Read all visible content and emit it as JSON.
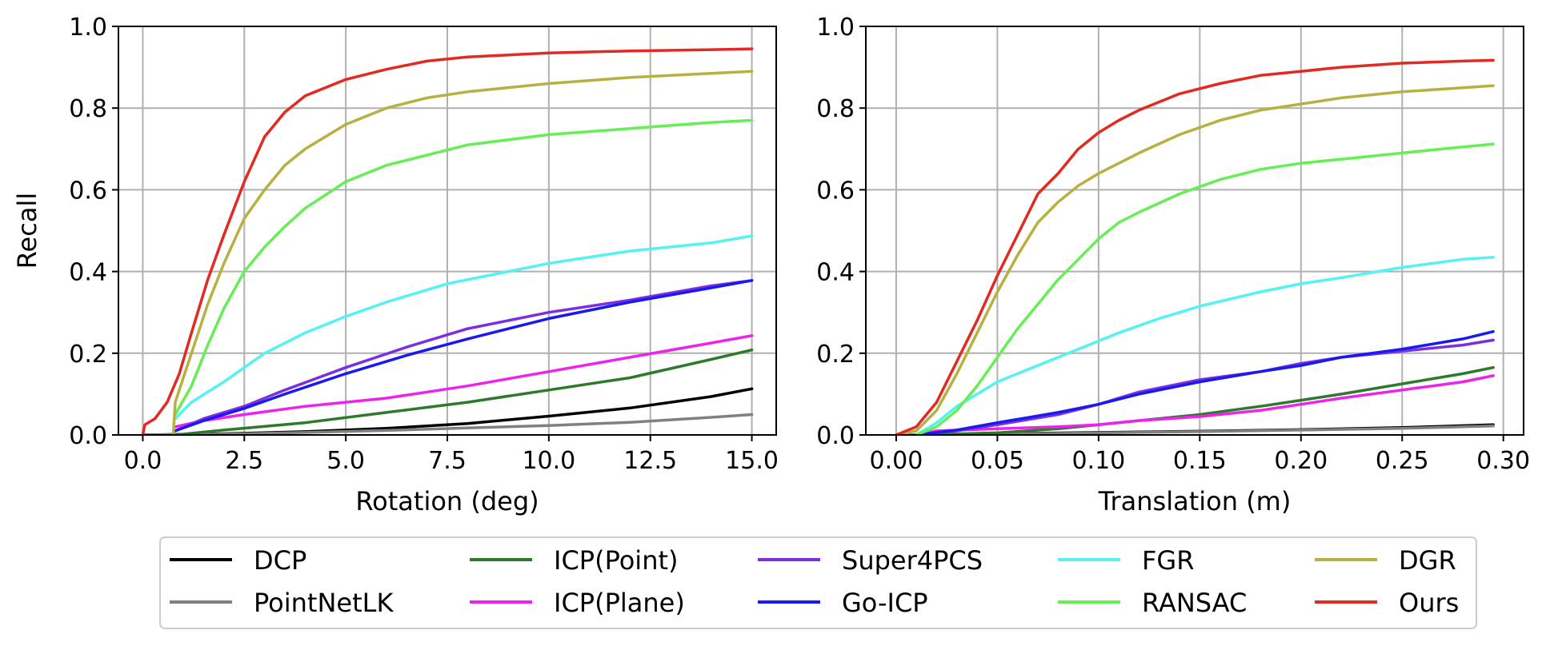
{
  "chart_data": [
    {
      "type": "line",
      "xlabel": "Rotation (deg)",
      "ylabel": "Recall",
      "xlim": [
        -0.6,
        15.6
      ],
      "ylim": [
        0.0,
        1.0
      ],
      "xticks": [
        "0.0",
        "2.5",
        "5.0",
        "7.5",
        "10.0",
        "12.5",
        "15.0"
      ],
      "yticks": [
        "0.0",
        "0.2",
        "0.4",
        "0.6",
        "0.8",
        "1.0"
      ],
      "grid": true,
      "series": [
        {
          "name": "DCP",
          "color": "#000000",
          "x": [
            0,
            2,
            4,
            6,
            8,
            10,
            12,
            14,
            15
          ],
          "y": [
            0,
            0.003,
            0.008,
            0.016,
            0.028,
            0.046,
            0.066,
            0.094,
            0.113
          ]
        },
        {
          "name": "PointNetLK",
          "color": "#808080",
          "x": [
            0,
            2,
            4,
            6,
            8,
            10,
            12,
            14,
            15
          ],
          "y": [
            0,
            0.002,
            0.006,
            0.011,
            0.017,
            0.023,
            0.031,
            0.043,
            0.05
          ]
        },
        {
          "name": "ICP(Point)",
          "color": "#2d7a2d",
          "x": [
            0.8,
            2,
            4,
            6,
            8,
            10,
            12,
            14,
            15
          ],
          "y": [
            0,
            0.012,
            0.03,
            0.055,
            0.08,
            0.11,
            0.14,
            0.185,
            0.208
          ]
        },
        {
          "name": "ICP(Plane)",
          "color": "#ee22ee",
          "x": [
            0.8,
            1.5,
            2.5,
            4,
            6,
            8,
            10,
            12,
            14,
            15
          ],
          "y": [
            0.02,
            0.035,
            0.05,
            0.07,
            0.09,
            0.12,
            0.155,
            0.19,
            0.225,
            0.243
          ]
        },
        {
          "name": "Super4PCS",
          "color": "#7b2fe0",
          "x": [
            0.8,
            1.5,
            2.5,
            3.5,
            5,
            6.5,
            8,
            10,
            12,
            14,
            15
          ],
          "y": [
            0.01,
            0.04,
            0.07,
            0.11,
            0.165,
            0.215,
            0.26,
            0.3,
            0.33,
            0.365,
            0.378
          ]
        },
        {
          "name": "Go-ICP",
          "color": "#1a1aee",
          "x": [
            0.8,
            1.5,
            2.5,
            3.5,
            5,
            6.5,
            8,
            10,
            12,
            14,
            15
          ],
          "y": [
            0.01,
            0.035,
            0.065,
            0.1,
            0.15,
            0.195,
            0.235,
            0.285,
            0.325,
            0.36,
            0.378
          ]
        },
        {
          "name": "FGR",
          "color": "#55f2f2",
          "x": [
            0.8,
            1.2,
            2,
            3,
            4,
            5,
            6,
            7.5,
            9,
            10,
            12,
            14,
            15
          ],
          "y": [
            0.04,
            0.08,
            0.13,
            0.2,
            0.25,
            0.29,
            0.325,
            0.37,
            0.4,
            0.42,
            0.45,
            0.47,
            0.487
          ]
        },
        {
          "name": "RANSAC",
          "color": "#66ee55",
          "x": [
            0.8,
            1.2,
            1.6,
            2,
            2.5,
            3,
            3.5,
            4,
            5,
            6,
            7,
            8,
            10,
            12,
            14,
            15
          ],
          "y": [
            0.05,
            0.12,
            0.22,
            0.31,
            0.4,
            0.46,
            0.51,
            0.555,
            0.62,
            0.66,
            0.685,
            0.71,
            0.735,
            0.75,
            0.765,
            0.77
          ]
        },
        {
          "name": "DGR",
          "color": "#b8b040",
          "x": [
            0.75,
            0.8,
            1.2,
            1.6,
            2,
            2.5,
            3,
            3.5,
            4,
            5,
            6,
            7,
            8,
            10,
            12,
            14,
            15
          ],
          "y": [
            0,
            0.08,
            0.2,
            0.32,
            0.42,
            0.53,
            0.6,
            0.66,
            0.7,
            0.76,
            0.8,
            0.825,
            0.84,
            0.86,
            0.875,
            0.885,
            0.89
          ]
        },
        {
          "name": "Ours",
          "color": "#e02a22",
          "x": [
            0,
            0.05,
            0.3,
            0.6,
            0.9,
            1.2,
            1.6,
            2,
            2.5,
            3,
            3.5,
            4,
            5,
            6,
            7,
            8,
            10,
            12,
            14,
            15
          ],
          "y": [
            0,
            0.025,
            0.04,
            0.08,
            0.15,
            0.25,
            0.38,
            0.49,
            0.62,
            0.73,
            0.79,
            0.83,
            0.87,
            0.895,
            0.915,
            0.925,
            0.935,
            0.94,
            0.943,
            0.945
          ]
        }
      ]
    },
    {
      "type": "line",
      "xlabel": "Translation (m)",
      "ylabel": "",
      "xlim": [
        -0.015,
        0.31
      ],
      "ylim": [
        0.0,
        1.0
      ],
      "xticks": [
        "0.00",
        "0.05",
        "0.10",
        "0.15",
        "0.20",
        "0.25",
        "0.30"
      ],
      "yticks": [
        "0.0",
        "0.2",
        "0.4",
        "0.6",
        "0.8",
        "1.0"
      ],
      "grid": true,
      "series": [
        {
          "name": "DCP",
          "color": "#000000",
          "x": [
            0,
            0.05,
            0.1,
            0.15,
            0.2,
            0.25,
            0.295
          ],
          "y": [
            0,
            0.003,
            0.006,
            0.009,
            0.013,
            0.018,
            0.025
          ]
        },
        {
          "name": "PointNetLK",
          "color": "#808080",
          "x": [
            0,
            0.05,
            0.1,
            0.15,
            0.2,
            0.25,
            0.295
          ],
          "y": [
            0,
            0.002,
            0.005,
            0.008,
            0.012,
            0.016,
            0.022
          ]
        },
        {
          "name": "ICP(Point)",
          "color": "#2d7a2d",
          "x": [
            0.01,
            0.05,
            0.08,
            0.1,
            0.12,
            0.15,
            0.18,
            0.2,
            0.22,
            0.25,
            0.28,
            0.295
          ],
          "y": [
            0,
            0.005,
            0.015,
            0.025,
            0.035,
            0.05,
            0.07,
            0.085,
            0.1,
            0.125,
            0.15,
            0.165
          ]
        },
        {
          "name": "ICP(Plane)",
          "color": "#ee22ee",
          "x": [
            0.01,
            0.02,
            0.05,
            0.08,
            0.1,
            0.12,
            0.15,
            0.18,
            0.2,
            0.22,
            0.25,
            0.28,
            0.295
          ],
          "y": [
            0,
            0.01,
            0.015,
            0.02,
            0.025,
            0.035,
            0.045,
            0.06,
            0.075,
            0.09,
            0.11,
            0.13,
            0.145
          ]
        },
        {
          "name": "Super4PCS",
          "color": "#7b2fe0",
          "x": [
            0.01,
            0.03,
            0.05,
            0.08,
            0.1,
            0.12,
            0.15,
            0.18,
            0.2,
            0.22,
            0.25,
            0.28,
            0.295
          ],
          "y": [
            0,
            0.01,
            0.025,
            0.05,
            0.075,
            0.105,
            0.135,
            0.155,
            0.175,
            0.19,
            0.205,
            0.22,
            0.232
          ]
        },
        {
          "name": "Go-ICP",
          "color": "#1a1aee",
          "x": [
            0.01,
            0.03,
            0.05,
            0.08,
            0.1,
            0.12,
            0.15,
            0.18,
            0.2,
            0.22,
            0.25,
            0.28,
            0.295
          ],
          "y": [
            0,
            0.012,
            0.03,
            0.055,
            0.075,
            0.1,
            0.13,
            0.155,
            0.17,
            0.19,
            0.21,
            0.235,
            0.253
          ]
        },
        {
          "name": "FGR",
          "color": "#55f2f2",
          "x": [
            0.01,
            0.02,
            0.03,
            0.05,
            0.07,
            0.09,
            0.11,
            0.13,
            0.15,
            0.18,
            0.2,
            0.22,
            0.25,
            0.28,
            0.295
          ],
          "y": [
            0,
            0.03,
            0.07,
            0.13,
            0.17,
            0.21,
            0.25,
            0.285,
            0.315,
            0.35,
            0.37,
            0.385,
            0.41,
            0.43,
            0.435
          ]
        },
        {
          "name": "RANSAC",
          "color": "#66ee55",
          "x": [
            0.01,
            0.02,
            0.03,
            0.04,
            0.05,
            0.06,
            0.07,
            0.08,
            0.09,
            0.1,
            0.11,
            0.12,
            0.14,
            0.16,
            0.18,
            0.2,
            0.22,
            0.25,
            0.28,
            0.295
          ],
          "y": [
            0,
            0.02,
            0.06,
            0.12,
            0.19,
            0.26,
            0.32,
            0.38,
            0.43,
            0.48,
            0.52,
            0.545,
            0.59,
            0.625,
            0.65,
            0.665,
            0.675,
            0.69,
            0.705,
            0.712
          ]
        },
        {
          "name": "DGR",
          "color": "#b8b040",
          "x": [
            0.0,
            0.01,
            0.02,
            0.03,
            0.04,
            0.05,
            0.06,
            0.07,
            0.08,
            0.09,
            0.1,
            0.11,
            0.12,
            0.14,
            0.16,
            0.18,
            0.2,
            0.22,
            0.25,
            0.28,
            0.295
          ],
          "y": [
            0,
            0.01,
            0.06,
            0.15,
            0.25,
            0.35,
            0.44,
            0.52,
            0.57,
            0.61,
            0.64,
            0.665,
            0.69,
            0.735,
            0.77,
            0.795,
            0.81,
            0.825,
            0.84,
            0.85,
            0.855
          ]
        },
        {
          "name": "Ours",
          "color": "#e02a22",
          "x": [
            0.0,
            0.01,
            0.02,
            0.03,
            0.04,
            0.05,
            0.06,
            0.07,
            0.08,
            0.09,
            0.1,
            0.11,
            0.12,
            0.13,
            0.14,
            0.16,
            0.18,
            0.2,
            0.22,
            0.25,
            0.28,
            0.295
          ],
          "y": [
            0,
            0.02,
            0.08,
            0.18,
            0.28,
            0.39,
            0.49,
            0.59,
            0.64,
            0.7,
            0.74,
            0.77,
            0.795,
            0.815,
            0.835,
            0.86,
            0.88,
            0.89,
            0.9,
            0.91,
            0.915,
            0.917
          ]
        }
      ]
    }
  ],
  "legend": {
    "placement": "bottom",
    "columns": 5,
    "entries": [
      {
        "label": "DCP",
        "color": "#000000"
      },
      {
        "label": "PointNetLK",
        "color": "#808080"
      },
      {
        "label": "ICP(Point)",
        "color": "#2d7a2d"
      },
      {
        "label": "ICP(Plane)",
        "color": "#ee22ee"
      },
      {
        "label": "Super4PCS",
        "color": "#7b2fe0"
      },
      {
        "label": "Go-ICP",
        "color": "#1a1aee"
      },
      {
        "label": "FGR",
        "color": "#55f2f2"
      },
      {
        "label": "RANSAC",
        "color": "#66ee55"
      },
      {
        "label": "DGR",
        "color": "#b8b040"
      },
      {
        "label": "Ours",
        "color": "#e02a22"
      }
    ]
  }
}
